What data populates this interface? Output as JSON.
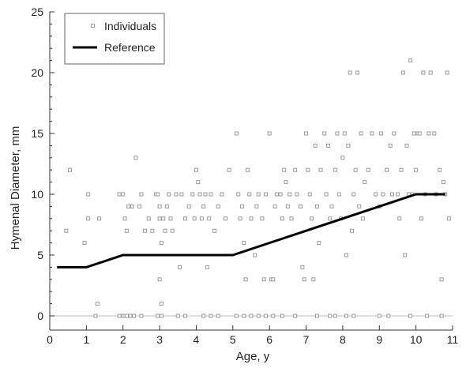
{
  "chart_data": {
    "type": "scatter",
    "title": "",
    "xlabel": "Age, y",
    "ylabel": "Hymenal Diameter, mm",
    "xlim": [
      0,
      11
    ],
    "ylim": [
      0,
      25
    ],
    "x_ticks": [
      0,
      1,
      2,
      3,
      4,
      5,
      6,
      7,
      8,
      9,
      10,
      11
    ],
    "y_ticks": [
      0,
      5,
      10,
      15,
      20,
      25
    ],
    "grid": false,
    "legend_position": "top-left",
    "colors": {
      "individuals": "#9a9a9a",
      "reference": "#000000",
      "axis": "#333333",
      "zero_line": "#bbbbbb"
    },
    "series": [
      {
        "name": "Individuals",
        "kind": "scatter",
        "marker": "square",
        "points": [
          [
            0.45,
            7
          ],
          [
            0.55,
            12
          ],
          [
            0.95,
            6
          ],
          [
            1.05,
            8
          ],
          [
            1.05,
            10
          ],
          [
            1.3,
            1
          ],
          [
            1.35,
            8
          ],
          [
            1.25,
            0
          ],
          [
            1.9,
            10
          ],
          [
            2.0,
            10
          ],
          [
            2.05,
            8
          ],
          [
            2.1,
            7
          ],
          [
            2.15,
            9
          ],
          [
            2.25,
            9
          ],
          [
            2.35,
            13
          ],
          [
            2.45,
            9
          ],
          [
            2.5,
            10
          ],
          [
            2.6,
            7
          ],
          [
            2.7,
            8
          ],
          [
            2.8,
            7
          ],
          [
            2.9,
            10
          ],
          [
            1.9,
            0
          ],
          [
            2.0,
            0
          ],
          [
            2.05,
            0
          ],
          [
            2.1,
            0
          ],
          [
            2.2,
            0
          ],
          [
            2.3,
            0
          ],
          [
            2.5,
            0
          ],
          [
            2.95,
            10
          ],
          [
            3.0,
            9
          ],
          [
            3.0,
            8
          ],
          [
            3.05,
            6
          ],
          [
            3.1,
            8
          ],
          [
            3.0,
            3
          ],
          [
            3.05,
            1
          ],
          [
            3.15,
            7
          ],
          [
            3.2,
            9
          ],
          [
            3.25,
            10
          ],
          [
            3.3,
            8
          ],
          [
            3.35,
            7
          ],
          [
            3.45,
            10
          ],
          [
            3.55,
            4
          ],
          [
            3.6,
            10
          ],
          [
            3.7,
            8
          ],
          [
            3.8,
            9
          ],
          [
            3.9,
            10
          ],
          [
            3.95,
            8
          ],
          [
            4.0,
            12
          ],
          [
            4.05,
            11
          ],
          [
            4.1,
            10
          ],
          [
            4.15,
            8
          ],
          [
            4.2,
            9
          ],
          [
            4.25,
            10
          ],
          [
            4.3,
            4
          ],
          [
            4.35,
            8
          ],
          [
            4.4,
            10
          ],
          [
            4.5,
            7
          ],
          [
            4.6,
            9
          ],
          [
            4.7,
            10
          ],
          [
            4.8,
            8
          ],
          [
            4.9,
            12
          ],
          [
            2.95,
            0
          ],
          [
            3.05,
            0
          ],
          [
            3.5,
            0
          ],
          [
            3.7,
            0
          ],
          [
            4.2,
            0
          ],
          [
            4.4,
            0
          ],
          [
            4.6,
            0
          ],
          [
            5.1,
            15
          ],
          [
            5.15,
            10
          ],
          [
            5.2,
            8
          ],
          [
            5.25,
            9
          ],
          [
            5.3,
            6
          ],
          [
            5.35,
            3
          ],
          [
            5.4,
            12
          ],
          [
            5.45,
            10
          ],
          [
            5.5,
            8
          ],
          [
            5.6,
            5
          ],
          [
            5.65,
            9
          ],
          [
            5.7,
            10
          ],
          [
            5.8,
            8
          ],
          [
            5.85,
            3
          ],
          [
            5.9,
            10
          ],
          [
            6.0,
            15
          ],
          [
            6.05,
            3
          ],
          [
            6.1,
            3
          ],
          [
            6.15,
            9
          ],
          [
            6.2,
            10
          ],
          [
            6.3,
            10
          ],
          [
            6.35,
            8
          ],
          [
            6.4,
            12
          ],
          [
            6.45,
            11
          ],
          [
            6.5,
            9
          ],
          [
            6.55,
            10
          ],
          [
            6.6,
            8
          ],
          [
            6.7,
            12
          ],
          [
            6.75,
            10
          ],
          [
            6.85,
            9
          ],
          [
            6.9,
            4
          ],
          [
            6.95,
            3
          ],
          [
            5.1,
            0
          ],
          [
            5.3,
            0
          ],
          [
            5.5,
            0
          ],
          [
            5.7,
            0
          ],
          [
            5.9,
            0
          ],
          [
            6.1,
            0
          ],
          [
            6.35,
            0
          ],
          [
            6.7,
            0
          ],
          [
            7.0,
            15
          ],
          [
            7.05,
            12
          ],
          [
            7.1,
            10
          ],
          [
            7.15,
            8
          ],
          [
            7.2,
            3
          ],
          [
            7.25,
            14
          ],
          [
            7.3,
            9
          ],
          [
            7.35,
            6
          ],
          [
            7.4,
            12
          ],
          [
            7.5,
            15
          ],
          [
            7.55,
            10
          ],
          [
            7.6,
            14
          ],
          [
            7.65,
            8
          ],
          [
            7.7,
            9
          ],
          [
            7.8,
            12
          ],
          [
            7.85,
            15
          ],
          [
            7.9,
            10
          ],
          [
            7.95,
            8
          ],
          [
            8.0,
            13
          ],
          [
            8.05,
            15
          ],
          [
            8.1,
            5
          ],
          [
            8.15,
            14
          ],
          [
            8.2,
            20
          ],
          [
            8.25,
            7
          ],
          [
            8.3,
            10
          ],
          [
            8.35,
            12
          ],
          [
            8.4,
            20
          ],
          [
            8.45,
            9
          ],
          [
            8.5,
            15
          ],
          [
            8.55,
            8
          ],
          [
            8.6,
            11
          ],
          [
            8.7,
            12
          ],
          [
            8.8,
            15
          ],
          [
            8.9,
            10
          ],
          [
            7.3,
            0
          ],
          [
            7.65,
            0
          ],
          [
            7.8,
            0
          ],
          [
            8.1,
            0
          ],
          [
            8.3,
            0
          ],
          [
            9.0,
            9
          ],
          [
            9.05,
            15
          ],
          [
            9.1,
            10
          ],
          [
            9.2,
            12
          ],
          [
            9.3,
            14
          ],
          [
            9.35,
            10
          ],
          [
            9.4,
            15
          ],
          [
            9.5,
            10
          ],
          [
            9.55,
            8
          ],
          [
            9.6,
            12
          ],
          [
            9.65,
            20
          ],
          [
            9.7,
            5
          ],
          [
            9.75,
            14
          ],
          [
            9.8,
            10
          ],
          [
            9.85,
            21
          ],
          [
            9.9,
            10
          ],
          [
            9.95,
            15
          ],
          [
            10.0,
            12
          ],
          [
            10.05,
            15
          ],
          [
            10.1,
            15
          ],
          [
            10.15,
            8
          ],
          [
            10.2,
            20
          ],
          [
            10.25,
            10
          ],
          [
            10.35,
            15
          ],
          [
            10.4,
            20
          ],
          [
            10.5,
            15
          ],
          [
            10.55,
            10
          ],
          [
            10.65,
            12
          ],
          [
            10.7,
            3
          ],
          [
            10.75,
            11
          ],
          [
            10.8,
            10
          ],
          [
            10.85,
            20
          ],
          [
            10.9,
            8
          ],
          [
            9.0,
            0
          ],
          [
            9.25,
            0
          ],
          [
            9.85,
            0
          ],
          [
            10.3,
            0
          ],
          [
            10.7,
            0
          ]
        ]
      },
      {
        "name": "Reference",
        "kind": "line",
        "points": [
          [
            0.2,
            4
          ],
          [
            1.0,
            4
          ],
          [
            2.0,
            5
          ],
          [
            5.0,
            5
          ],
          [
            10.0,
            10
          ],
          [
            10.8,
            10
          ]
        ]
      }
    ]
  }
}
